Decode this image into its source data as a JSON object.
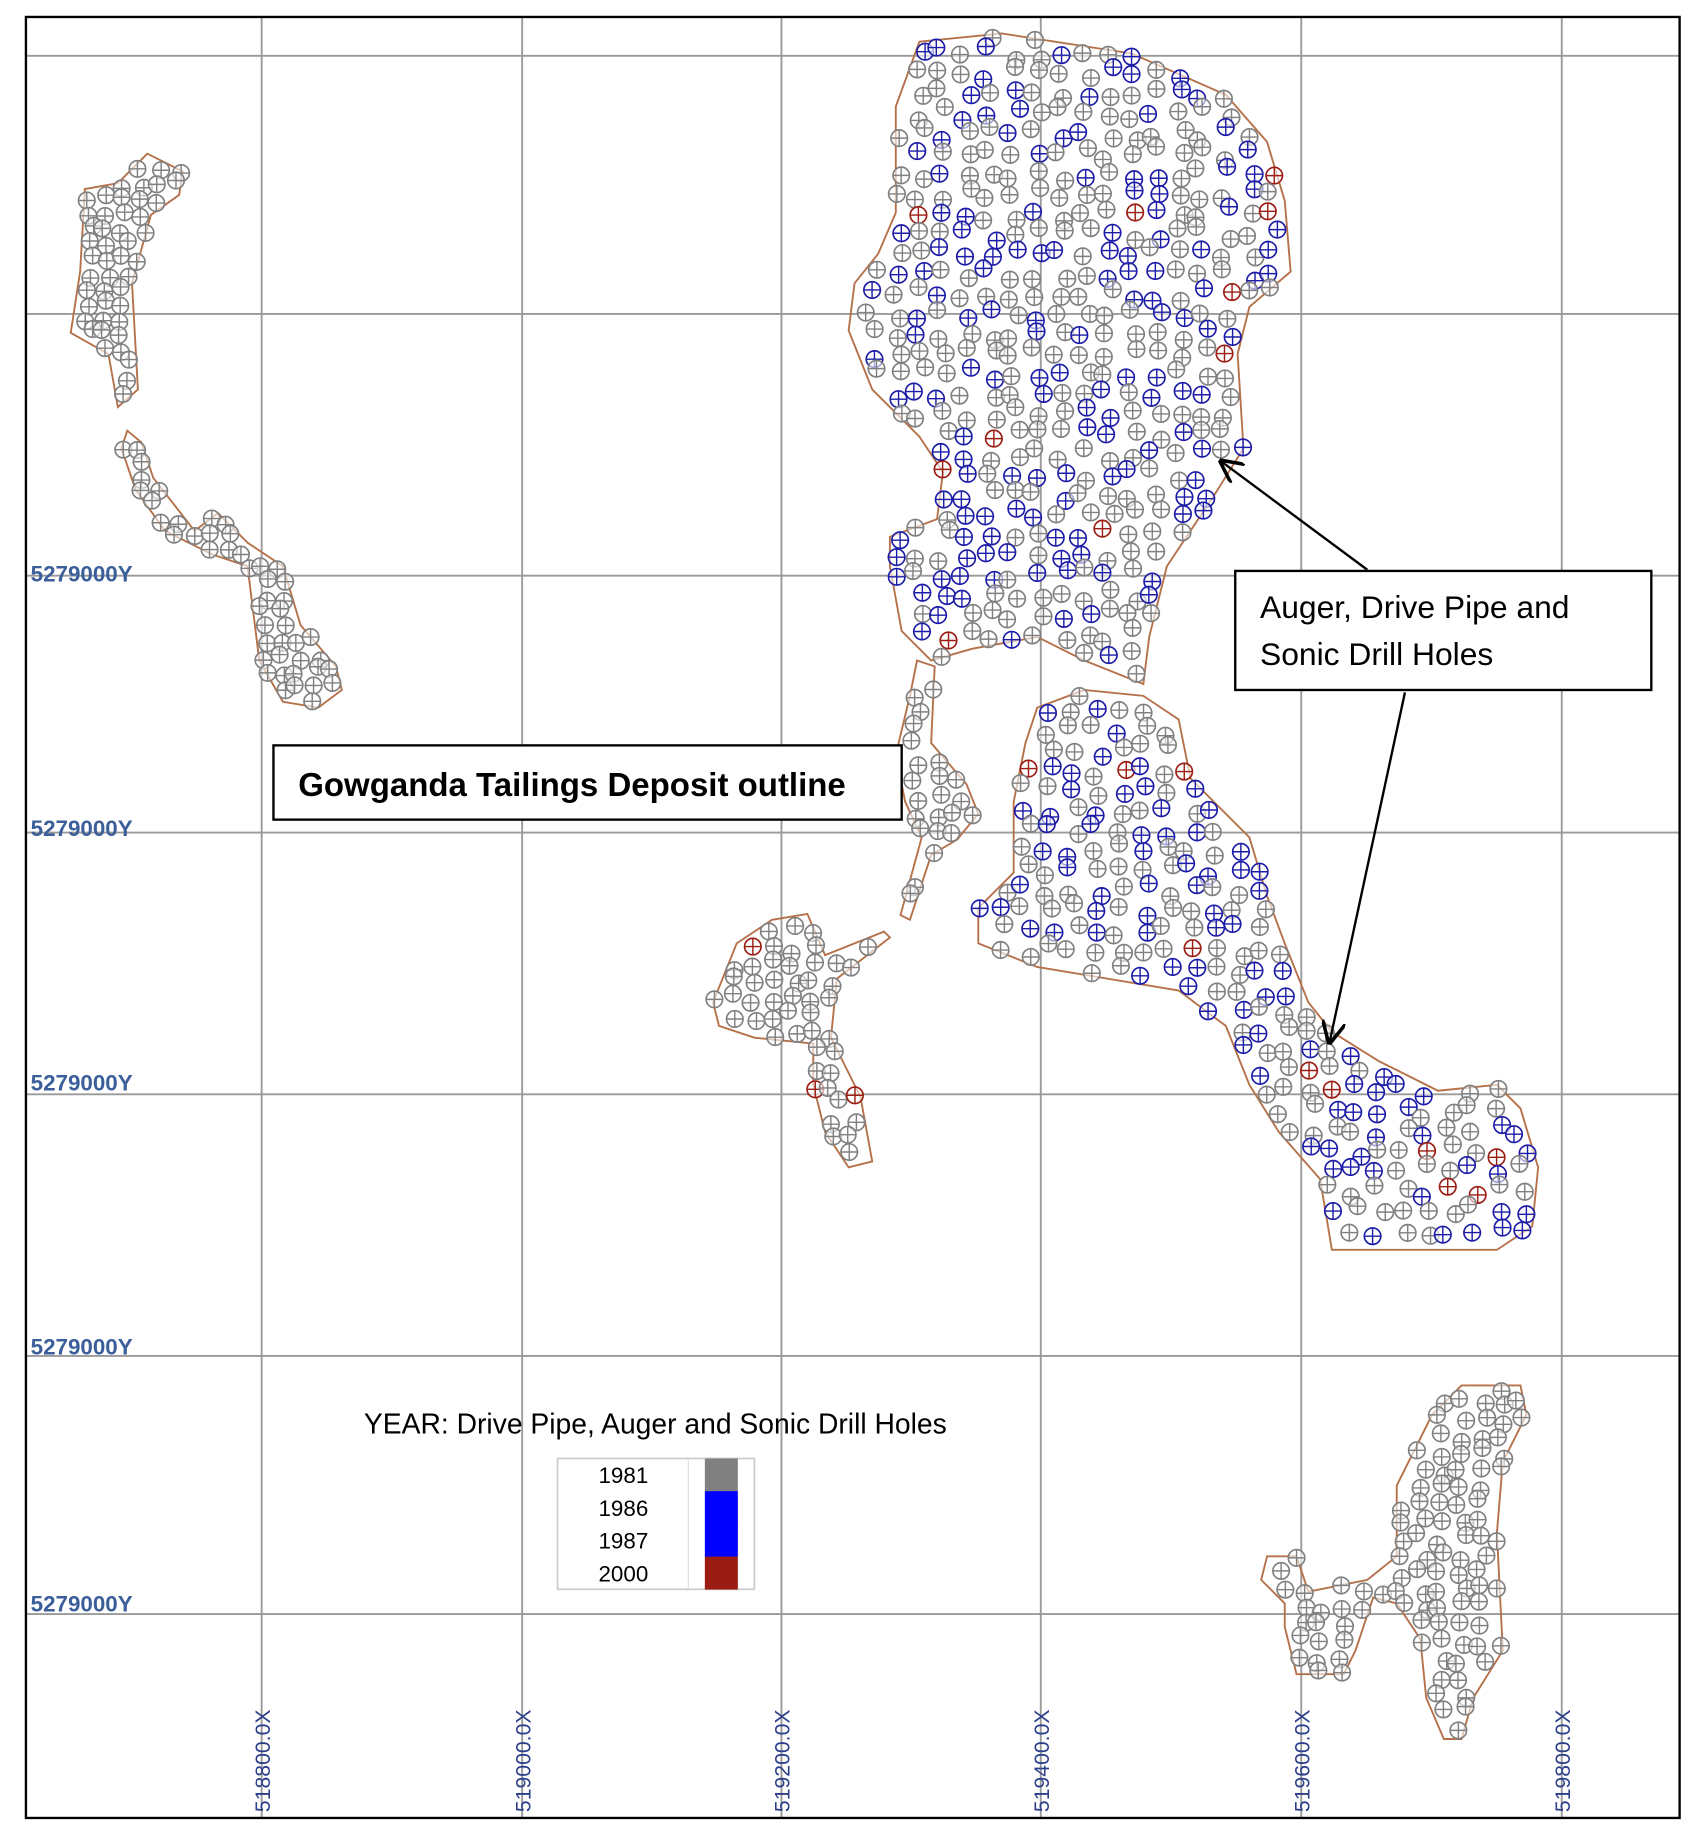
{
  "map": {
    "y_labels": [
      "5279000Y",
      "5279000Y",
      "5279000Y",
      "5279000Y",
      "5279000Y"
    ],
    "x_labels": [
      "518800.0X",
      "519000.0X",
      "519200.0X",
      "519400.0X",
      "519600.0X",
      "519800.0X"
    ],
    "annotations": {
      "outline_label": "Gowganda Tailings Deposit outline",
      "holes_label": [
        "Auger, Drive Pipe and",
        "Sonic Drill Holes"
      ]
    },
    "legend": {
      "title": "YEAR: Drive Pipe, Auger and Sonic Drill Holes",
      "entries": [
        {
          "label": "1981",
          "color": "#808080"
        },
        {
          "label": "1986",
          "color": "#0000ff"
        },
        {
          "label": "1987",
          "color": "#0000ff"
        },
        {
          "label": "2000",
          "color": "#9b1c12"
        }
      ]
    }
  }
}
